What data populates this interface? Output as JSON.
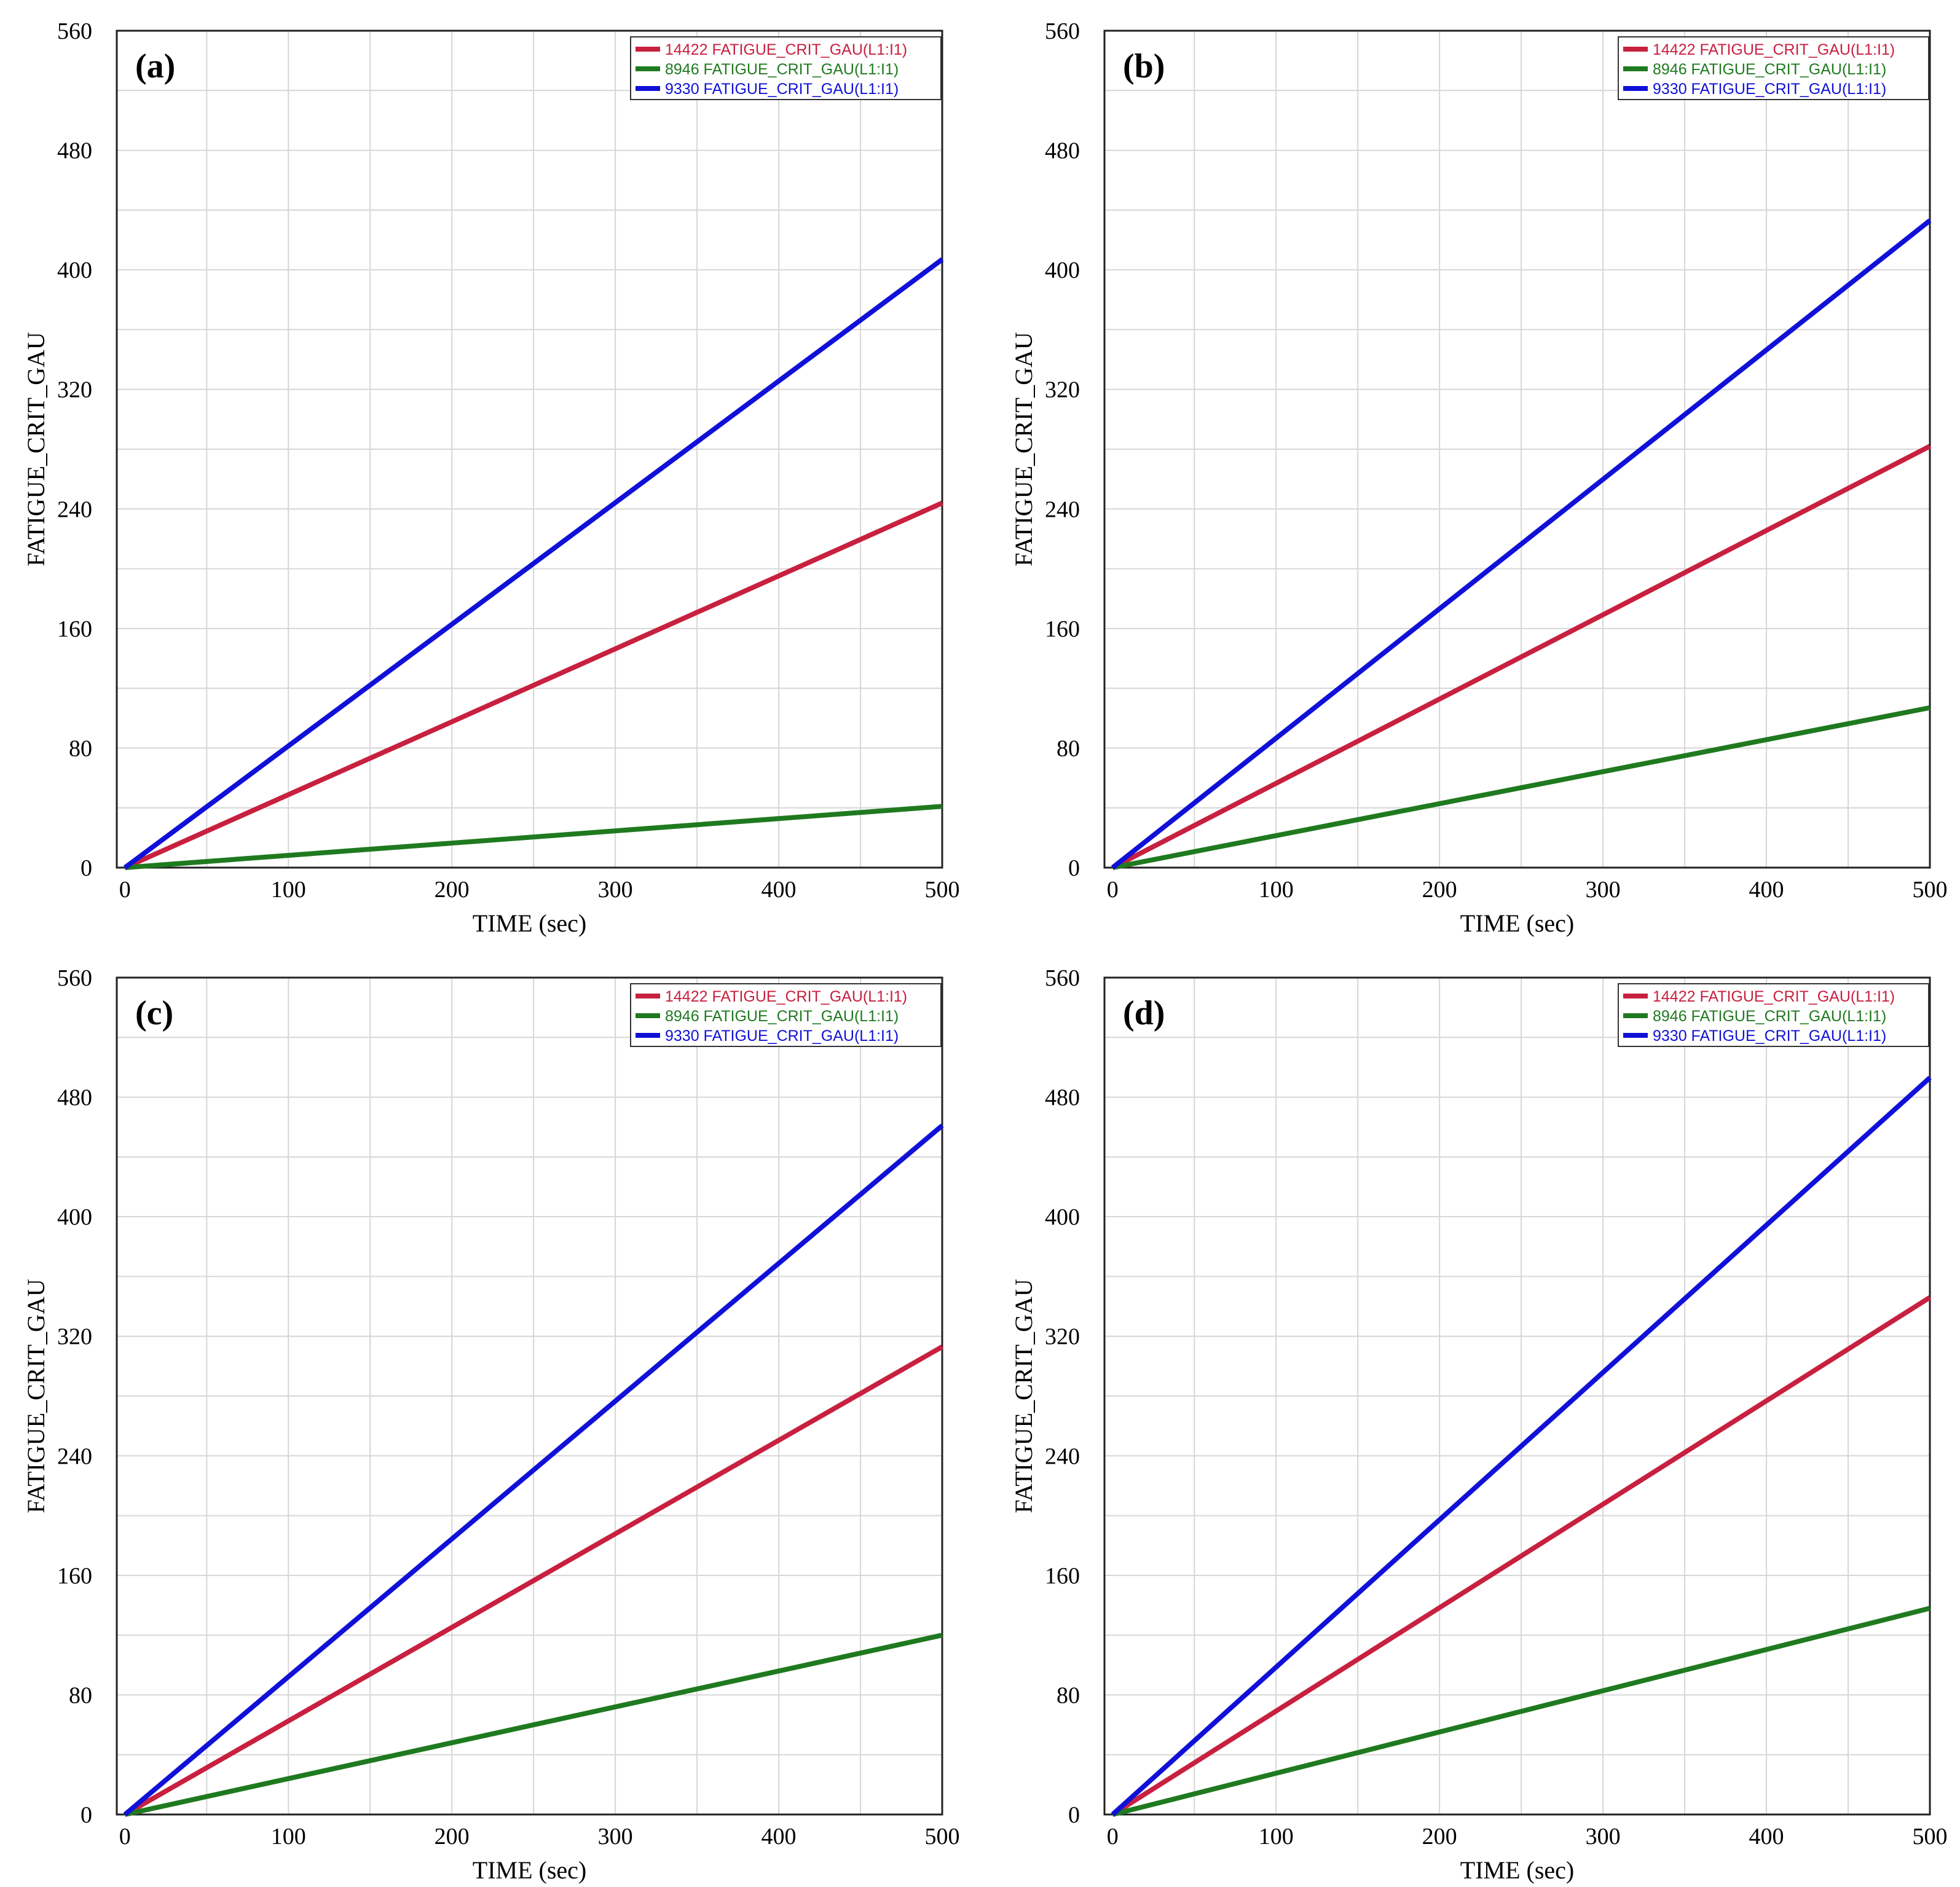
{
  "figure": {
    "colors": {
      "grid": "#d6d6d6",
      "axis": "#222222"
    },
    "chart_data": [
      {
        "type": "line",
        "panel_label": "(a)",
        "xlabel": "TIME (sec)",
        "ylabel": "FATIGUE_CRIT_GAU",
        "xlim": [
          -5,
          500
        ],
        "ylim": [
          0,
          560
        ],
        "xticks": [
          0,
          100,
          200,
          300,
          400,
          500
        ],
        "yticks": [
          0,
          80,
          160,
          240,
          320,
          400,
          480,
          560
        ],
        "legend": "top-right",
        "grid": true,
        "series": [
          {
            "name": "14422 FATIGUE_CRIT_GAU(L1:I1)",
            "color": "#c8203f",
            "x": [
              0,
              500
            ],
            "y": [
              0,
              244
            ]
          },
          {
            "name": "8946 FATIGUE_CRIT_GAU(L1:I1)",
            "color": "#1f7a1f",
            "x": [
              0,
              500
            ],
            "y": [
              0,
              41
            ]
          },
          {
            "name": "9330 FATIGUE_CRIT_GAU(L1:I1)",
            "color": "#1010d8",
            "x": [
              0,
              500
            ],
            "y": [
              0,
              407
            ]
          }
        ]
      },
      {
        "type": "line",
        "panel_label": "(b)",
        "xlabel": "TIME (sec)",
        "ylabel": "FATIGUE_CRIT_GAU",
        "xlim": [
          -5,
          500
        ],
        "ylim": [
          0,
          560
        ],
        "xticks": [
          0,
          100,
          200,
          300,
          400,
          500
        ],
        "yticks": [
          0,
          80,
          160,
          240,
          320,
          400,
          480,
          560
        ],
        "legend": "top-right",
        "grid": true,
        "series": [
          {
            "name": "14422 FATIGUE_CRIT_GAU(L1:I1)",
            "color": "#c8203f",
            "x": [
              0,
              500
            ],
            "y": [
              0,
              282
            ]
          },
          {
            "name": "8946 FATIGUE_CRIT_GAU(L1:I1)",
            "color": "#1f7a1f",
            "x": [
              0,
              500
            ],
            "y": [
              0,
              107
            ]
          },
          {
            "name": "9330 FATIGUE_CRIT_GAU(L1:I1)",
            "color": "#1010d8",
            "x": [
              0,
              500
            ],
            "y": [
              0,
              433
            ]
          }
        ]
      },
      {
        "type": "line",
        "panel_label": "(c)",
        "xlabel": "TIME (sec)",
        "ylabel": "FATIGUE_CRIT_GAU",
        "xlim": [
          -5,
          500
        ],
        "ylim": [
          0,
          560
        ],
        "xticks": [
          0,
          100,
          200,
          300,
          400,
          500
        ],
        "yticks": [
          0,
          80,
          160,
          240,
          320,
          400,
          480,
          560
        ],
        "legend": "top-right",
        "grid": true,
        "series": [
          {
            "name": "14422 FATIGUE_CRIT_GAU(L1:I1)",
            "color": "#c8203f",
            "x": [
              0,
              500
            ],
            "y": [
              0,
              313
            ]
          },
          {
            "name": "8946 FATIGUE_CRIT_GAU(L1:I1)",
            "color": "#1f7a1f",
            "x": [
              0,
              500
            ],
            "y": [
              0,
              120
            ]
          },
          {
            "name": "9330 FATIGUE_CRIT_GAU(L1:I1)",
            "color": "#1010d8",
            "x": [
              0,
              500
            ],
            "y": [
              0,
              461
            ]
          }
        ]
      },
      {
        "type": "line",
        "panel_label": "(d)",
        "xlabel": "TIME (sec)",
        "ylabel": "FATIGUE_CRIT_GAU",
        "xlim": [
          -5,
          500
        ],
        "ylim": [
          0,
          560
        ],
        "xticks": [
          0,
          100,
          200,
          300,
          400,
          500
        ],
        "yticks": [
          0,
          80,
          160,
          240,
          320,
          400,
          480,
          560
        ],
        "legend": "top-right",
        "grid": true,
        "series": [
          {
            "name": "14422 FATIGUE_CRIT_GAU(L1:I1)",
            "color": "#c8203f",
            "x": [
              0,
              500
            ],
            "y": [
              0,
              346
            ]
          },
          {
            "name": "8946 FATIGUE_CRIT_GAU(L1:I1)",
            "color": "#1f7a1f",
            "x": [
              0,
              500
            ],
            "y": [
              0,
              138
            ]
          },
          {
            "name": "9330 FATIGUE_CRIT_GAU(L1:I1)",
            "color": "#1010d8",
            "x": [
              0,
              500
            ],
            "y": [
              0,
              493
            ]
          }
        ]
      }
    ]
  }
}
